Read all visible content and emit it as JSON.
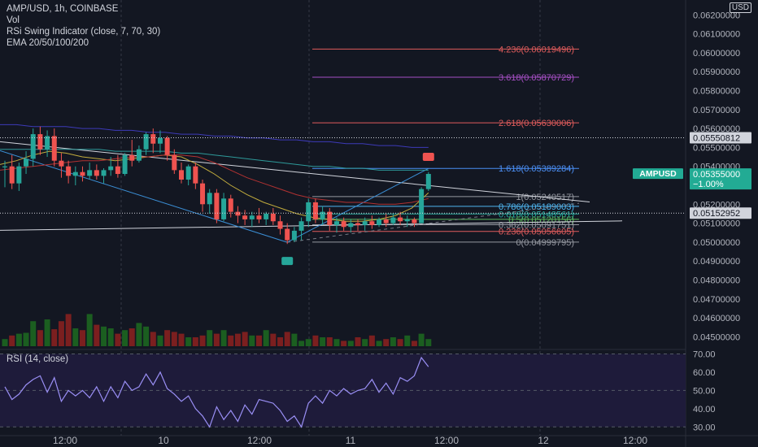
{
  "header": {
    "symbol_line": "AMP/USD, 1h, COINBASE",
    "vol_label": "Vol",
    "indicator_label": "RSi Swing Indicator (close, 7, 70, 30)",
    "ema_label": "EMA 20/50/100/200",
    "currency_button": "USD"
  },
  "rsi_panel": {
    "label": "RSI (14, close)"
  },
  "colors": {
    "background": "#131722",
    "up": "#26a69a",
    "down": "#ef5350",
    "vol_up": "#1b5e20",
    "vol_down": "#7b1f1f",
    "rsi_line": "#9a8ff5",
    "rsi_band": "#1e1b3a",
    "accent": "#22ab94"
  },
  "chart_data": [
    {
      "type": "candlestick",
      "title": "AMP/USD, 1h, COINBASE",
      "ylim": [
        0.0445,
        0.0621
      ],
      "y_ticks": [
        "0.06200000",
        "0.06100000",
        "0.06000000",
        "0.05900000",
        "0.05800000",
        "0.05700000",
        "0.05600000",
        "0.05500000",
        "0.05400000",
        "0.05200000",
        "0.05100000",
        "0.05000000",
        "0.04900000",
        "0.04800000",
        "0.04700000",
        "0.04600000",
        "0.04500000"
      ],
      "x_ticks": [
        "12:00",
        "10",
        "12:00",
        "11",
        "12:00",
        "12",
        "12:00"
      ],
      "price_tags": [
        {
          "label": "0.05550812",
          "value": 0.05550812,
          "style": "white"
        },
        {
          "label": "AMPUSD",
          "value": 0.05355,
          "style": "accent"
        },
        {
          "label": "0.05355000",
          "value": 0.05355,
          "style": "accent"
        },
        {
          "label": "−1.00%",
          "value": 0.05355,
          "style": "accent-sub"
        },
        {
          "label": "0.05152952",
          "value": 0.05152952,
          "style": "white"
        }
      ],
      "candles": [
        {
          "o": 0.05395,
          "h": 0.0543,
          "l": 0.0529,
          "c": 0.054
        },
        {
          "o": 0.054,
          "h": 0.0546,
          "l": 0.0528,
          "c": 0.0531
        },
        {
          "o": 0.0531,
          "h": 0.0542,
          "l": 0.0527,
          "c": 0.054
        },
        {
          "o": 0.054,
          "h": 0.0548,
          "l": 0.0536,
          "c": 0.0544
        },
        {
          "o": 0.0544,
          "h": 0.056,
          "l": 0.054,
          "c": 0.0557
        },
        {
          "o": 0.0557,
          "h": 0.0561,
          "l": 0.0546,
          "c": 0.0549
        },
        {
          "o": 0.0549,
          "h": 0.0559,
          "l": 0.0545,
          "c": 0.0556
        },
        {
          "o": 0.0556,
          "h": 0.056,
          "l": 0.054,
          "c": 0.0543
        },
        {
          "o": 0.0543,
          "h": 0.0547,
          "l": 0.0534,
          "c": 0.054
        },
        {
          "o": 0.054,
          "h": 0.0543,
          "l": 0.0531,
          "c": 0.0535
        },
        {
          "o": 0.0535,
          "h": 0.054,
          "l": 0.053,
          "c": 0.0537
        },
        {
          "o": 0.0537,
          "h": 0.054,
          "l": 0.0532,
          "c": 0.0535
        },
        {
          "o": 0.0535,
          "h": 0.0542,
          "l": 0.0533,
          "c": 0.0538
        },
        {
          "o": 0.0538,
          "h": 0.0541,
          "l": 0.0533,
          "c": 0.0535
        },
        {
          "o": 0.0535,
          "h": 0.0539,
          "l": 0.0531,
          "c": 0.0538
        },
        {
          "o": 0.0538,
          "h": 0.0545,
          "l": 0.0535,
          "c": 0.054
        },
        {
          "o": 0.054,
          "h": 0.0546,
          "l": 0.0534,
          "c": 0.0536
        },
        {
          "o": 0.0536,
          "h": 0.0547,
          "l": 0.0535,
          "c": 0.0546
        },
        {
          "o": 0.0546,
          "h": 0.0554,
          "l": 0.054,
          "c": 0.0543
        },
        {
          "o": 0.0543,
          "h": 0.0551,
          "l": 0.0542,
          "c": 0.0549
        },
        {
          "o": 0.0549,
          "h": 0.0558,
          "l": 0.0546,
          "c": 0.0557
        },
        {
          "o": 0.0557,
          "h": 0.056,
          "l": 0.0547,
          "c": 0.0552
        },
        {
          "o": 0.0552,
          "h": 0.0559,
          "l": 0.0547,
          "c": 0.0555
        },
        {
          "o": 0.0555,
          "h": 0.0556,
          "l": 0.0543,
          "c": 0.0546
        },
        {
          "o": 0.0546,
          "h": 0.0549,
          "l": 0.0536,
          "c": 0.0538
        },
        {
          "o": 0.0538,
          "h": 0.0542,
          "l": 0.0531,
          "c": 0.0533
        },
        {
          "o": 0.0533,
          "h": 0.0541,
          "l": 0.053,
          "c": 0.054
        },
        {
          "o": 0.054,
          "h": 0.0542,
          "l": 0.0528,
          "c": 0.0531
        },
        {
          "o": 0.0531,
          "h": 0.0533,
          "l": 0.0516,
          "c": 0.052
        },
        {
          "o": 0.052,
          "h": 0.0528,
          "l": 0.0515,
          "c": 0.0526
        },
        {
          "o": 0.0526,
          "h": 0.0528,
          "l": 0.051,
          "c": 0.0512
        },
        {
          "o": 0.0512,
          "h": 0.0526,
          "l": 0.0511,
          "c": 0.0523
        },
        {
          "o": 0.0523,
          "h": 0.0525,
          "l": 0.0513,
          "c": 0.0516
        },
        {
          "o": 0.0516,
          "h": 0.0519,
          "l": 0.051,
          "c": 0.0514
        },
        {
          "o": 0.0514,
          "h": 0.0517,
          "l": 0.0509,
          "c": 0.0512
        },
        {
          "o": 0.0512,
          "h": 0.0516,
          "l": 0.0508,
          "c": 0.0514
        },
        {
          "o": 0.0514,
          "h": 0.0518,
          "l": 0.051,
          "c": 0.0512
        },
        {
          "o": 0.0512,
          "h": 0.0516,
          "l": 0.0509,
          "c": 0.0515
        },
        {
          "o": 0.0515,
          "h": 0.0518,
          "l": 0.0509,
          "c": 0.0511
        },
        {
          "o": 0.0511,
          "h": 0.0514,
          "l": 0.0504,
          "c": 0.0507
        },
        {
          "o": 0.0507,
          "h": 0.051,
          "l": 0.0499,
          "c": 0.0501
        },
        {
          "o": 0.0501,
          "h": 0.0508,
          "l": 0.05,
          "c": 0.0506
        },
        {
          "o": 0.0506,
          "h": 0.0513,
          "l": 0.0501,
          "c": 0.0511
        },
        {
          "o": 0.0511,
          "h": 0.0523,
          "l": 0.0508,
          "c": 0.0521
        },
        {
          "o": 0.0521,
          "h": 0.0523,
          "l": 0.051,
          "c": 0.0512
        },
        {
          "o": 0.0512,
          "h": 0.0519,
          "l": 0.0509,
          "c": 0.0516
        },
        {
          "o": 0.0516,
          "h": 0.0518,
          "l": 0.0506,
          "c": 0.0509
        },
        {
          "o": 0.0509,
          "h": 0.0513,
          "l": 0.0505,
          "c": 0.0511
        },
        {
          "o": 0.0511,
          "h": 0.0513,
          "l": 0.0506,
          "c": 0.0508
        },
        {
          "o": 0.0508,
          "h": 0.0512,
          "l": 0.0505,
          "c": 0.051
        },
        {
          "o": 0.051,
          "h": 0.0512,
          "l": 0.0506,
          "c": 0.0509
        },
        {
          "o": 0.0509,
          "h": 0.0513,
          "l": 0.0506,
          "c": 0.0511
        },
        {
          "o": 0.0511,
          "h": 0.0514,
          "l": 0.0507,
          "c": 0.0509
        },
        {
          "o": 0.0509,
          "h": 0.0513,
          "l": 0.0508,
          "c": 0.0512
        },
        {
          "o": 0.0512,
          "h": 0.0515,
          "l": 0.0508,
          "c": 0.051
        },
        {
          "o": 0.051,
          "h": 0.0515,
          "l": 0.0509,
          "c": 0.0513
        },
        {
          "o": 0.0513,
          "h": 0.0516,
          "l": 0.0509,
          "c": 0.0511
        },
        {
          "o": 0.0511,
          "h": 0.0514,
          "l": 0.0508,
          "c": 0.0512
        },
        {
          "o": 0.0512,
          "h": 0.0513,
          "l": 0.0508,
          "c": 0.051
        },
        {
          "o": 0.051,
          "h": 0.0529,
          "l": 0.051,
          "c": 0.0528
        },
        {
          "o": 0.0528,
          "h": 0.0537,
          "l": 0.0527,
          "c": 0.0536
        }
      ],
      "volume": {
        "ylim": [
          0,
          100
        ],
        "values": [
          8,
          12,
          14,
          15,
          28,
          18,
          30,
          19,
          28,
          36,
          20,
          18,
          36,
          24,
          22,
          20,
          14,
          18,
          20,
          26,
          22,
          16,
          12,
          18,
          16,
          14,
          10,
          10,
          12,
          18,
          14,
          18,
          12,
          14,
          16,
          12,
          12,
          18,
          14,
          10,
          16,
          14,
          6,
          8,
          12,
          10,
          10,
          8,
          6,
          6,
          10,
          8,
          12,
          6,
          8,
          10,
          8,
          12,
          6,
          14,
          8
        ]
      },
      "fibonacci": {
        "ylim_note": "levels",
        "levels": [
          {
            "label": "4.236(0.06019496)",
            "value": 0.06019496,
            "color": "#e05c5c"
          },
          {
            "label": "3.618(0.05870729)",
            "value": 0.05870729,
            "color": "#a64fc4"
          },
          {
            "label": "2.618(0.05630006)",
            "value": 0.05630006,
            "color": "#e05c5c"
          },
          {
            "label": "1.618(0.05389284)",
            "value": 0.05389284,
            "color": "#4b8ff5"
          },
          {
            "label": "1(0.05240517)",
            "value": 0.05240517,
            "color": "#9598a1"
          },
          {
            "label": "0.786(0.05189003)",
            "value": 0.05189003,
            "color": "#4fb6f0"
          },
          {
            "label": "0.618(0.05148561)",
            "value": 0.05148561,
            "color": "#26a69a"
          },
          {
            "label": "0.5(0.05120156)",
            "value": 0.05120156,
            "color": "#5cb85c"
          },
          {
            "label": "0.382(0.05091751)",
            "value": 0.05091751,
            "color": "#9598a1"
          },
          {
            "label": "0.236(0.05056605)",
            "value": 0.05056605,
            "color": "#e05c5c"
          },
          {
            "label": "0(0.04999795)",
            "value": 0.04999795,
            "color": "#9598a1"
          }
        ]
      },
      "ema": [
        {
          "name": "EMA 20",
          "color": "#c2ac3d",
          "values": [
            0.0541,
            0.0543,
            0.0546,
            0.0548,
            0.0547,
            0.0545,
            0.0544,
            0.0543,
            0.0544,
            0.0545,
            0.0546,
            0.0545,
            0.0541,
            0.0536,
            0.053,
            0.0525,
            0.0521,
            0.0518,
            0.0515,
            0.0513,
            0.0512,
            0.0511,
            0.0511,
            0.0512,
            0.0514,
            0.0518,
            0.0526
          ]
        },
        {
          "name": "EMA 50",
          "color": "#b23232",
          "values": [
            0.0538,
            0.0539,
            0.054,
            0.0541,
            0.0542,
            0.0543,
            0.0543,
            0.0544,
            0.0545,
            0.0545,
            0.0546,
            0.0546,
            0.0545,
            0.0542,
            0.0538,
            0.0534,
            0.0531,
            0.0528,
            0.0525,
            0.0523,
            0.0522,
            0.0521,
            0.0521,
            0.052,
            0.052,
            0.0521,
            0.0523
          ]
        },
        {
          "name": "EMA 100",
          "color": "#2e9a9a",
          "values": [
            0.0549,
            0.0549,
            0.0549,
            0.0549,
            0.0549,
            0.0549,
            0.0549,
            0.0548,
            0.0548,
            0.0548,
            0.0548,
            0.0547,
            0.0547,
            0.0546,
            0.0545,
            0.0544,
            0.0543,
            0.0542,
            0.0541,
            0.054,
            0.054,
            0.0539,
            0.0539,
            0.0538,
            0.0538,
            0.0538,
            0.0538
          ]
        },
        {
          "name": "EMA 200",
          "color": "#3d3ab8",
          "values": [
            0.0562,
            0.0562,
            0.0561,
            0.0561,
            0.0561,
            0.056,
            0.056,
            0.0559,
            0.0559,
            0.0558,
            0.0558,
            0.0557,
            0.0557,
            0.0556,
            0.0556,
            0.0555,
            0.0555,
            0.0554,
            0.0554,
            0.0553,
            0.0553,
            0.0552,
            0.0552,
            0.0551,
            0.0551,
            0.055,
            0.055
          ]
        }
      ],
      "signals": [
        {
          "type": "short",
          "candle": 60,
          "price": 0.0545,
          "color": "#ef5350"
        },
        {
          "type": "long",
          "candle": 40,
          "price": 0.049,
          "color": "#26a69a"
        }
      ]
    },
    {
      "type": "line",
      "title": "RSI (14, close)",
      "ylim": [
        27,
        72
      ],
      "y_ticks": [
        "70.00",
        "60.00",
        "50.00",
        "40.00",
        "30.00"
      ],
      "band": [
        30,
        70
      ],
      "midline": 50,
      "values": [
        52,
        45,
        48,
        53,
        56,
        58,
        49,
        57,
        44,
        50,
        47,
        50,
        46,
        52,
        44,
        52,
        46,
        55,
        50,
        52,
        59,
        53,
        60,
        51,
        48,
        44,
        47,
        40,
        36,
        30,
        41,
        34,
        39,
        33,
        42,
        37,
        45,
        44,
        43,
        39,
        33,
        36,
        30,
        43,
        47,
        43,
        50,
        47,
        51,
        48,
        50,
        51,
        56,
        49,
        54,
        48,
        57,
        55,
        58,
        68,
        63
      ]
    }
  ]
}
